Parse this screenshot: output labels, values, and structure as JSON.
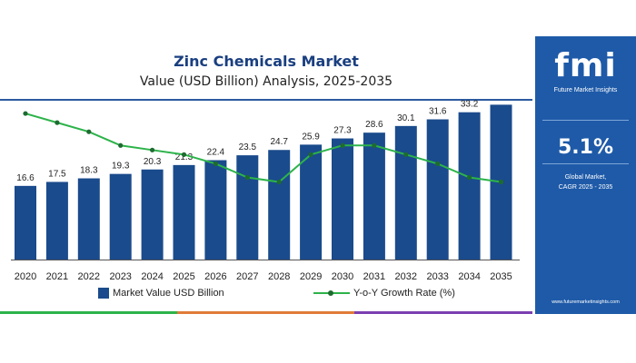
{
  "header": {
    "title": "Zinc Chemicals Market",
    "subtitle": "Value (USD Billion) Analysis, 2025-2035"
  },
  "side_panel": {
    "logo": "fmi",
    "logo_tagline": "Future Market Insights",
    "cagr_value": "5.1%",
    "cagr_label_line1": "Global Market,",
    "cagr_label_line2": "CAGR 2025 - 2035",
    "website": "www.futuremarketinsights.com"
  },
  "colors": {
    "bar": "#1a4b8c",
    "line": "#2db34a",
    "marker": "#1e6b30",
    "panel": "#1e5aa8",
    "title": "#1a3f80"
  },
  "legend": {
    "bar_label": "Market Value USD Billion",
    "line_label": "Y-o-Y Growth Rate (%)"
  },
  "chart_data": {
    "type": "bar",
    "categories": [
      "2020",
      "2021",
      "2022",
      "2023",
      "2024",
      "2025",
      "2026",
      "2027",
      "2028",
      "2029",
      "2030",
      "2031",
      "2032",
      "2033",
      "2034",
      "2035"
    ],
    "series": [
      {
        "name": "Market Value USD Billion",
        "type": "bar",
        "values": [
          16.6,
          17.5,
          18.3,
          19.3,
          20.3,
          21.3,
          22.4,
          23.5,
          24.7,
          25.9,
          27.3,
          28.6,
          30.1,
          31.6,
          33.2,
          34.9
        ]
      },
      {
        "name": "Y-o-Y Growth Rate (%)",
        "type": "line",
        "values": [
          5.7,
          5.5,
          5.3,
          5.0,
          4.9,
          4.8,
          4.6,
          4.3,
          4.2,
          4.8,
          5.0,
          5.0,
          4.8,
          4.6,
          4.3,
          4.2
        ]
      }
    ],
    "ylim": [
      0,
      36
    ],
    "ylim_secondary": [
      2.5,
      6.0
    ],
    "grid": false,
    "legend_position": "bottom"
  }
}
